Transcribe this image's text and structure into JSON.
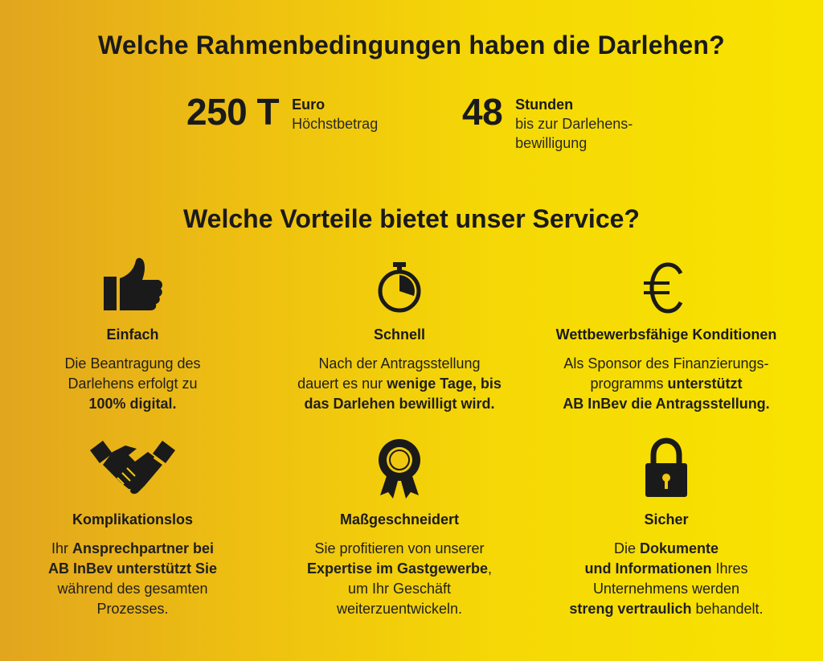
{
  "heading_conditions": "Welche Rahmenbedingungen haben die Darlehen?",
  "stats": [
    {
      "number": "250 T",
      "unit": "Euro",
      "desc": "Höchstbetrag"
    },
    {
      "number": "48",
      "unit": "Stunden",
      "desc": "bis zur Darlehens-\nbewilligung"
    }
  ],
  "heading_benefits": "Welche Vorteile bietet unser Service?",
  "features": [
    {
      "icon": "thumbs-up-icon",
      "title": "Einfach",
      "body": [
        [
          "n",
          "Die Beantragung des"
        ],
        [
          "br"
        ],
        [
          "n",
          "Darlehens erfolgt zu"
        ],
        [
          "br"
        ],
        [
          "b",
          "100% digital."
        ]
      ]
    },
    {
      "icon": "stopwatch-icon",
      "title": "Schnell",
      "body": [
        [
          "n",
          "Nach der Antragsstellung"
        ],
        [
          "br"
        ],
        [
          "n",
          "dauert es nur "
        ],
        [
          "b",
          "wenige Tage, bis"
        ],
        [
          "br"
        ],
        [
          "b",
          "das Darlehen bewilligt wird."
        ]
      ]
    },
    {
      "icon": "euro-icon",
      "title": "Wettbewerbsfähige Konditionen",
      "body": [
        [
          "n",
          "Als Sponsor des Finanzierungs-"
        ],
        [
          "br"
        ],
        [
          "n",
          "programms  "
        ],
        [
          "b",
          "unterstützt"
        ],
        [
          "br"
        ],
        [
          "b",
          "AB InBev die Antragsstellung."
        ]
      ]
    },
    {
      "icon": "handshake-icon",
      "title": "Komplikationslos",
      "body": [
        [
          "n",
          "Ihr "
        ],
        [
          "b",
          "Ansprechpartner bei"
        ],
        [
          "br"
        ],
        [
          "b",
          "AB InBev  unterstützt Sie"
        ],
        [
          "br"
        ],
        [
          "n",
          "während des gesamten"
        ],
        [
          "br"
        ],
        [
          "n",
          "Prozesses."
        ]
      ]
    },
    {
      "icon": "award-rosette-icon",
      "title": "Maßgeschneidert",
      "body": [
        [
          "n",
          "Sie profitieren von unserer"
        ],
        [
          "br"
        ],
        [
          "b",
          "Expertise im Gastgewerbe"
        ],
        [
          "n",
          ","
        ],
        [
          "br"
        ],
        [
          "n",
          "um Ihr Geschäft"
        ],
        [
          "br"
        ],
        [
          "n",
          "weiterzuentwickeln."
        ]
      ]
    },
    {
      "icon": "padlock-icon",
      "title": "Sicher",
      "body": [
        [
          "n",
          "Die "
        ],
        [
          "b",
          "Dokumente"
        ],
        [
          "br"
        ],
        [
          "b",
          "und Informationen"
        ],
        [
          "n",
          " Ihres"
        ],
        [
          "br"
        ],
        [
          "n",
          "Unternehmens werden"
        ],
        [
          "br"
        ],
        [
          "b",
          "streng vertraulich"
        ],
        [
          "n",
          " behandelt."
        ]
      ]
    }
  ]
}
